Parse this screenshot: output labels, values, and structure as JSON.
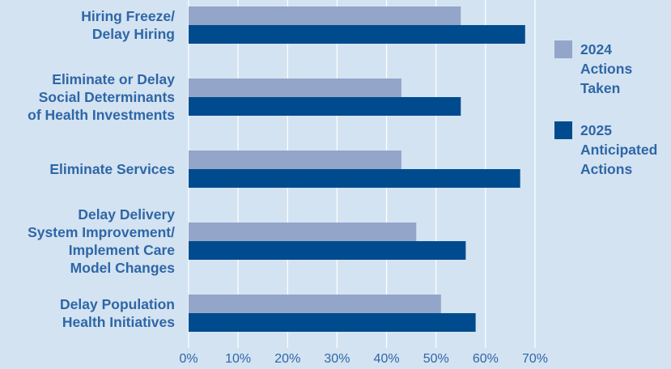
{
  "chart_data": {
    "type": "bar",
    "orientation": "horizontal",
    "categories": [
      [
        "Hiring Freeze/",
        "Delay Hiring"
      ],
      [
        "Eliminate or Delay",
        "Social Determinants",
        "of Health Investments"
      ],
      [
        "Eliminate Services"
      ],
      [
        "Delay Delivery",
        "System Improvement/",
        "Implement Care",
        "Model Changes"
      ],
      [
        "Delay Population",
        "Health Initiatives"
      ]
    ],
    "series": [
      {
        "name": "2024 Actions Taken",
        "legend_lines": [
          "2024",
          "Actions",
          "Taken"
        ],
        "color": "#93a5c9",
        "values": [
          55,
          43,
          43,
          46,
          51
        ]
      },
      {
        "name": "2025 Anticipated Actions",
        "legend_lines": [
          "2025",
          "Anticipated",
          "Actions"
        ],
        "color": "#004b8d",
        "values": [
          68,
          55,
          67,
          56,
          58
        ]
      }
    ],
    "x_ticks": [
      "0%",
      "10%",
      "20%",
      "30%",
      "40%",
      "50%",
      "60%",
      "70%"
    ],
    "xlim": [
      0,
      70
    ],
    "grid": true,
    "legend_position": "right",
    "title": "",
    "xlabel": "",
    "ylabel": ""
  }
}
